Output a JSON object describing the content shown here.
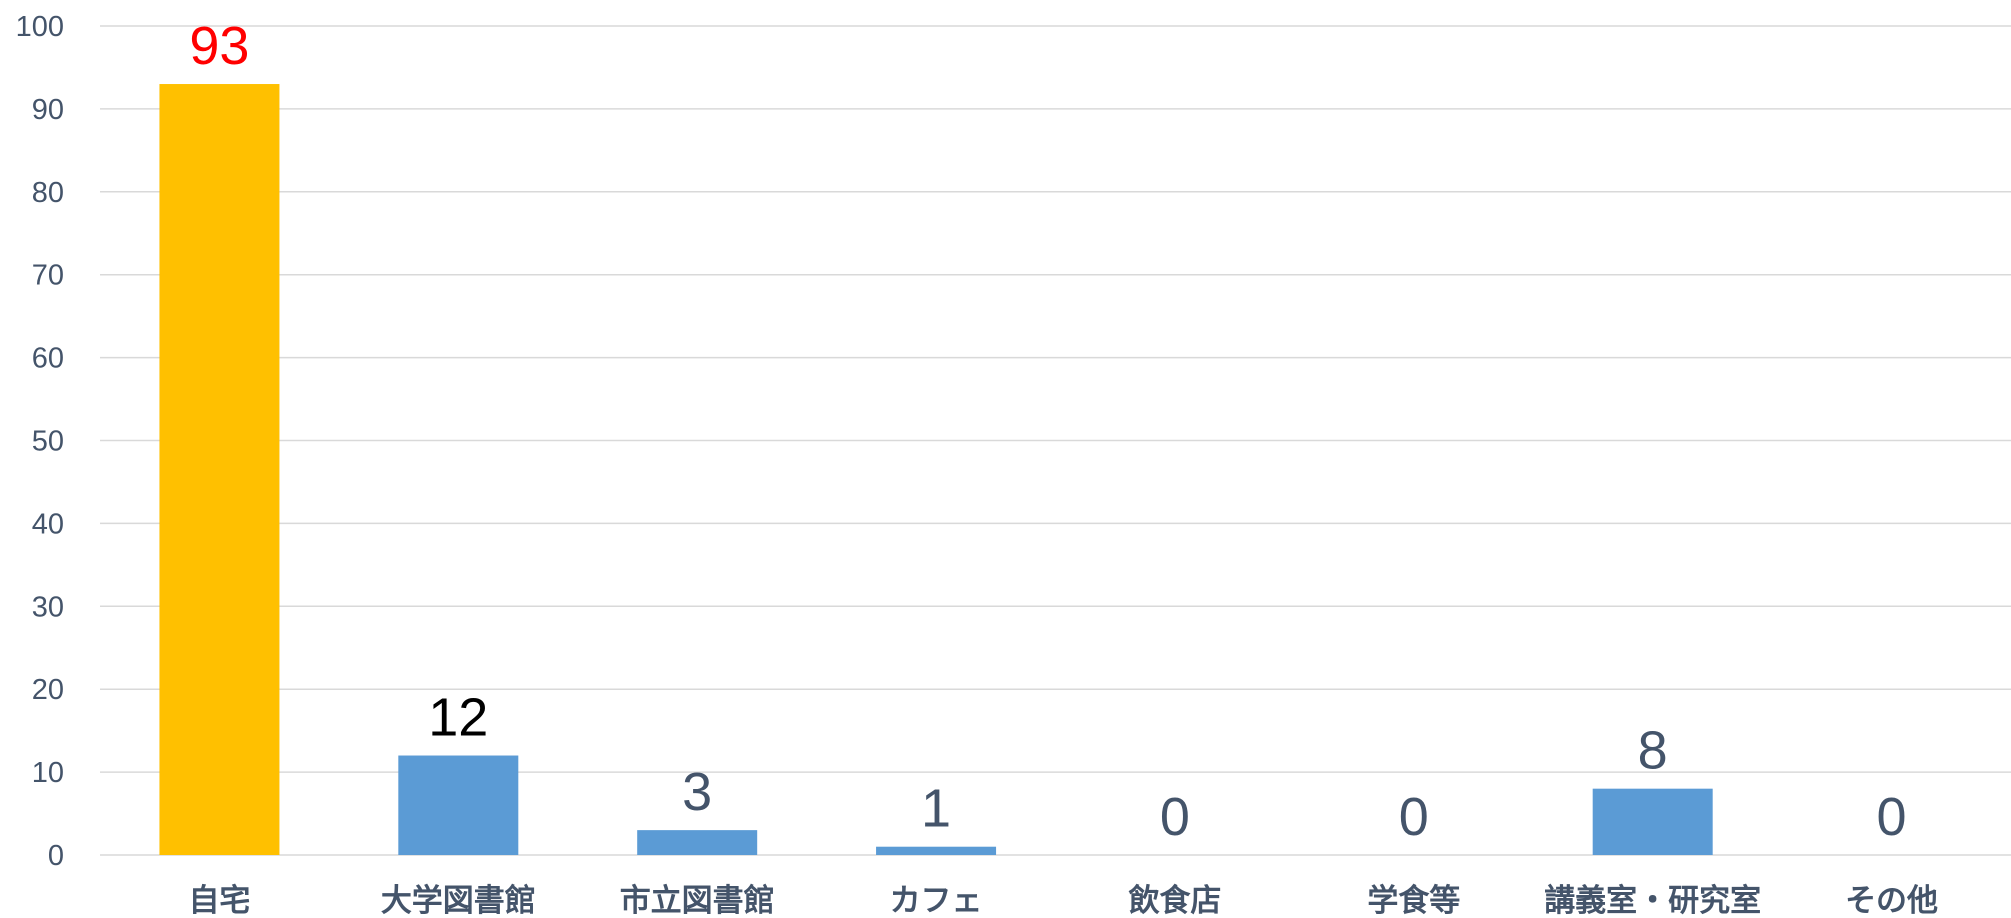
{
  "chart_data": {
    "type": "bar",
    "categories": [
      "自宅",
      "大学図書館",
      "市立図書館",
      "カフェ",
      "飲食店",
      "学食等",
      "講義室・研究室",
      "その他"
    ],
    "values": [
      93,
      12,
      3,
      1,
      0,
      0,
      8,
      0
    ],
    "ylim": [
      0,
      100
    ],
    "yticks": [
      0,
      10,
      20,
      30,
      40,
      50,
      60,
      70,
      80,
      90,
      100
    ],
    "grid": true,
    "legend": "none",
    "colors": {
      "default_bar": "#5b9bd5",
      "highlight_bar": "#ffc000",
      "highlight_label": "#ff0000",
      "second_label": "#000000",
      "default_label": "#44546a",
      "axis_text": "#44546a",
      "grid": "#d9d9d9"
    },
    "bar_colors": [
      "#ffc000",
      "#5b9bd5",
      "#5b9bd5",
      "#5b9bd5",
      "#5b9bd5",
      "#5b9bd5",
      "#5b9bd5",
      "#5b9bd5"
    ],
    "label_colors": [
      "#ff0000",
      "#000000",
      "#44546a",
      "#44546a",
      "#44546a",
      "#44546a",
      "#44546a",
      "#44546a"
    ]
  }
}
